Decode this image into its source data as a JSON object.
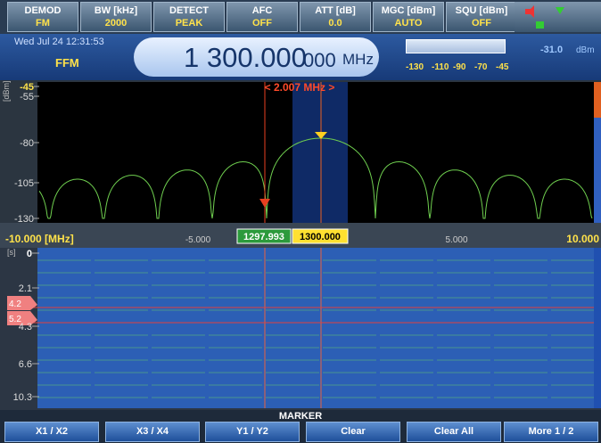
{
  "header": {
    "controls": [
      {
        "label": "DEMOD",
        "value": "FM"
      },
      {
        "label": "BW [kHz]",
        "value": "2000"
      },
      {
        "label": "DETECT",
        "value": "PEAK"
      },
      {
        "label": "AFC",
        "value": "OFF"
      },
      {
        "label": "ATT [dB]",
        "value": "0.0"
      },
      {
        "label": "MGC [dBm]",
        "value": "AUTO"
      },
      {
        "label": "SQU [dBm]",
        "value": "OFF"
      }
    ]
  },
  "status": {
    "datetime": "Wed Jul 24  12:31:53",
    "mode": "FFM",
    "frequency": "1 300.000",
    "frequency_fine": "000",
    "frequency_unit": "MHz",
    "level": "-31.0",
    "level_unit": "dBm",
    "level_scale": [
      "-130",
      "-110",
      "-90",
      "-70",
      "-45"
    ]
  },
  "spectrum": {
    "y_unit": "[dBm]",
    "y_labels": [
      "-45",
      "-55",
      "-80",
      "-105",
      "-130"
    ],
    "marker_delta": "< 2.007 MHz >",
    "x_labels": [
      "-10.000 [MHz]",
      "-5.000",
      "5.000",
      "10.000"
    ],
    "marker1": "1297.993",
    "marker2": "1300.000"
  },
  "waterfall": {
    "y_unit": "[s]",
    "y_labels": [
      "0",
      "2.1",
      "4.3",
      "6.6",
      "10.3"
    ],
    "markers": [
      "4.2",
      "5.2"
    ]
  },
  "softkeys": {
    "title": "MARKER",
    "buttons": [
      "X1 / X2",
      "X3 / X4",
      "Y1 / Y2",
      "Clear",
      "Clear All",
      "More 1 / 2"
    ]
  }
}
